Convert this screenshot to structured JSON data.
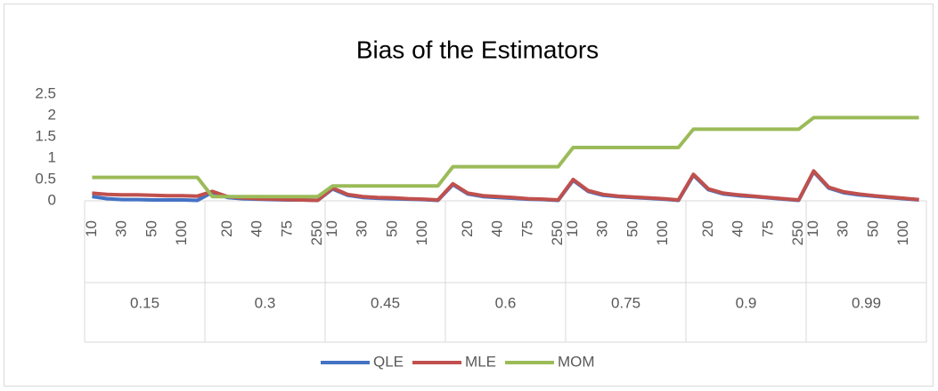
{
  "chart_data": {
    "type": "line",
    "title": "Bias of the Estimators",
    "groups": [
      "0.15",
      "0.3",
      "0.45",
      "0.6",
      "0.75",
      "0.9",
      "0.99"
    ],
    "categories": [
      10,
      null,
      30,
      null,
      50,
      null,
      100,
      null,
      null,
      20,
      null,
      40,
      null,
      75,
      null,
      250,
      10,
      null,
      30,
      null,
      50,
      null,
      100,
      null,
      null,
      20,
      null,
      40,
      null,
      75,
      null,
      250,
      10,
      null,
      30,
      null,
      50,
      null,
      100,
      null,
      null,
      20,
      null,
      40,
      null,
      75,
      null,
      250,
      10,
      null,
      30,
      null,
      50,
      null,
      100,
      null
    ],
    "series": [
      {
        "name": "QLE",
        "color": "#4472c4",
        "values": [
          0.1,
          0.05,
          0.03,
          0.03,
          0.02,
          0.02,
          0.02,
          0.01,
          0.2,
          0.08,
          0.05,
          0.04,
          0.03,
          0.02,
          0.02,
          0.01,
          0.28,
          0.13,
          0.08,
          0.06,
          0.05,
          0.04,
          0.03,
          0.01,
          0.38,
          0.16,
          0.1,
          0.08,
          0.06,
          0.04,
          0.03,
          0.01,
          0.48,
          0.22,
          0.13,
          0.1,
          0.08,
          0.06,
          0.04,
          0.01,
          0.6,
          0.26,
          0.16,
          0.12,
          0.1,
          0.07,
          0.04,
          0.01,
          0.68,
          0.3,
          0.19,
          0.14,
          0.11,
          0.08,
          0.05,
          0.02
        ]
      },
      {
        "name": "MLE",
        "color": "#c0504d",
        "values": [
          0.18,
          0.15,
          0.14,
          0.14,
          0.13,
          0.12,
          0.12,
          0.11,
          0.22,
          0.1,
          0.07,
          0.05,
          0.04,
          0.03,
          0.02,
          0.01,
          0.3,
          0.15,
          0.1,
          0.08,
          0.07,
          0.05,
          0.04,
          0.02,
          0.4,
          0.18,
          0.12,
          0.1,
          0.08,
          0.05,
          0.04,
          0.02,
          0.5,
          0.24,
          0.15,
          0.11,
          0.09,
          0.07,
          0.05,
          0.02,
          0.62,
          0.28,
          0.18,
          0.14,
          0.11,
          0.08,
          0.05,
          0.02,
          0.7,
          0.32,
          0.21,
          0.16,
          0.12,
          0.09,
          0.06,
          0.03
        ]
      },
      {
        "name": "MOM",
        "color": "#9bbb59",
        "values": [
          0.55,
          0.55,
          0.55,
          0.55,
          0.55,
          0.55,
          0.55,
          0.55,
          0.1,
          0.1,
          0.1,
          0.1,
          0.1,
          0.1,
          0.1,
          0.1,
          0.35,
          0.35,
          0.35,
          0.35,
          0.35,
          0.35,
          0.35,
          0.35,
          0.8,
          0.8,
          0.8,
          0.8,
          0.8,
          0.8,
          0.8,
          0.8,
          1.25,
          1.25,
          1.25,
          1.25,
          1.25,
          1.25,
          1.25,
          1.25,
          1.68,
          1.68,
          1.68,
          1.68,
          1.68,
          1.68,
          1.68,
          1.68,
          1.95,
          1.95,
          1.95,
          1.95,
          1.95,
          1.95,
          1.95,
          1.95
        ]
      }
    ],
    "ylim": [
      0,
      2.5
    ],
    "yticks": [
      0,
      0.5,
      1,
      1.5,
      2,
      2.5
    ],
    "grid": false,
    "legend": "bottom"
  }
}
